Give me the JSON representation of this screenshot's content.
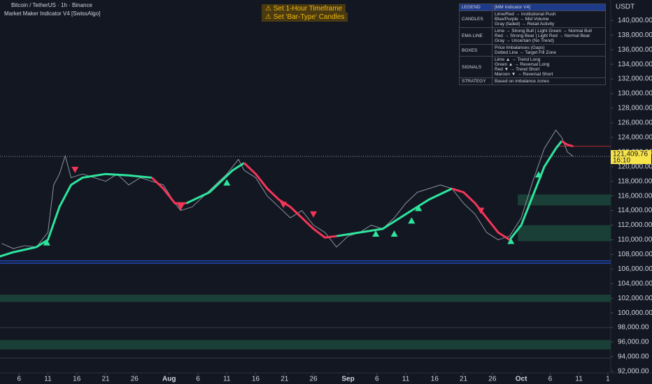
{
  "header": {
    "symbol": "Bitcoin / TetherUS · 1h · Binance",
    "indicator": "Market Maker Indicator V4 [SwissAlgo]",
    "currency": "USDT"
  },
  "warnings": [
    "⚠ Set 1-Hour Timeframe",
    "⚠ Set 'Bar-Type' Candles"
  ],
  "legend": {
    "title": "LEGEND",
    "subtitle": "[MM Indicator V4]",
    "rows": [
      {
        "label": "CANDLES",
        "lines": [
          "Lime/Red → Institutional Push",
          "Blue/Purple → Mid Volume",
          "Gray (faded) → Retail Activity"
        ]
      },
      {
        "label": "EMA LINE",
        "lines": [
          "Lime → Strong Bull | Light Green → Normal Bull",
          "Red → Strong Bear | Light Red → Normal Bear",
          "Gray → Uncertain (No Trend)"
        ]
      },
      {
        "label": "BOXES",
        "lines": [
          "Price Imbalances (Gaps)",
          "Dotted Line → Target Fill Zone"
        ]
      },
      {
        "label": "SIGNALS",
        "lines": [
          "Lime ▲ → Trend Long",
          "Green ▲ → Reversal Long",
          "Red ▼ → Trend Short",
          "Maroon ▼ → Reversal Short"
        ]
      },
      {
        "label": "STRATEGY",
        "lines": [
          "Based on imbalance zones"
        ]
      }
    ]
  },
  "chart_data": {
    "type": "line",
    "xlim": [
      1.7,
      107.5
    ],
    "ylim": [
      91800,
      142800
    ],
    "xticks": [
      {
        "value": 5,
        "label": "6"
      },
      {
        "value": 10,
        "label": "11"
      },
      {
        "value": 15,
        "label": "16"
      },
      {
        "value": 20,
        "label": "21"
      },
      {
        "value": 25,
        "label": "26"
      },
      {
        "value": 31,
        "label": "Aug"
      },
      {
        "value": 36,
        "label": "6"
      },
      {
        "value": 41,
        "label": "11"
      },
      {
        "value": 46,
        "label": "16"
      },
      {
        "value": 51,
        "label": "21"
      },
      {
        "value": 56,
        "label": "26"
      },
      {
        "value": 62,
        "label": "Sep"
      },
      {
        "value": 67,
        "label": "6"
      },
      {
        "value": 72,
        "label": "11"
      },
      {
        "value": 77,
        "label": "16"
      },
      {
        "value": 82,
        "label": "21"
      },
      {
        "value": 87,
        "label": "26"
      },
      {
        "value": 92,
        "label": "Oct"
      },
      {
        "value": 97,
        "label": "6"
      },
      {
        "value": 102,
        "label": "11"
      },
      {
        "value": 107,
        "label": "1"
      }
    ],
    "yticks": [
      {
        "value": 92000,
        "label": "92,000.00"
      },
      {
        "value": 94000,
        "label": "94,000.00"
      },
      {
        "value": 96000,
        "label": "96,000.00"
      },
      {
        "value": 98000,
        "label": "98,000.00"
      },
      {
        "value": 100000,
        "label": "100,000.00"
      },
      {
        "value": 102000,
        "label": "102,000.00"
      },
      {
        "value": 104000,
        "label": "104,000.00"
      },
      {
        "value": 106000,
        "label": "106,000.00"
      },
      {
        "value": 108000,
        "label": "108,000.00"
      },
      {
        "value": 110000,
        "label": "110,000.00"
      },
      {
        "value": 112000,
        "label": "112,000.00"
      },
      {
        "value": 114000,
        "label": "114,000.00"
      },
      {
        "value": 116000,
        "label": "116,000.00"
      },
      {
        "value": 118000,
        "label": "118,000.00"
      },
      {
        "value": 120000,
        "label": "120,000.00"
      },
      {
        "value": 122000,
        "label": "122,000.00"
      },
      {
        "value": 124000,
        "label": "124,000.00"
      },
      {
        "value": 126000,
        "label": "126,000.00"
      },
      {
        "value": 128000,
        "label": "128,000.00"
      },
      {
        "value": 130000,
        "label": "130,000.00"
      },
      {
        "value": 132000,
        "label": "132,000.00"
      },
      {
        "value": 134000,
        "label": "134,000.00"
      },
      {
        "value": 136000,
        "label": "136,000.00"
      },
      {
        "value": 138000,
        "label": "138,000.00"
      },
      {
        "value": 140000,
        "label": "140,000.00"
      }
    ],
    "zone_color": "#1d4a3c",
    "zones": [
      {
        "from": 1.7,
        "lo": 95000,
        "hi": 96300
      },
      {
        "from": 1.7,
        "lo": 101500,
        "hi": 102500
      },
      {
        "from": 91.4,
        "lo": 114700,
        "hi": 116200
      },
      {
        "from": 91.4,
        "lo": 109800,
        "hi": 112000
      }
    ],
    "levels": [
      {
        "value": 107100,
        "color": "#2962ff",
        "from": 1.7
      },
      {
        "value": 106800,
        "color": "#2962ff",
        "from": 1.7
      },
      {
        "value": 98000,
        "color": "#363a45",
        "from": 1.7
      },
      {
        "value": 93800,
        "color": "#363a45",
        "from": 1.7
      },
      {
        "value": 122800,
        "color": "#b22833",
        "from": 98
      }
    ],
    "last_price": {
      "value": 121409.76,
      "label": "121,409.76"
    },
    "countdown": "16:10",
    "series": [
      {
        "color": "#8a949e",
        "width": 1,
        "x": [
          2,
          4,
          6,
          8,
          10,
          11,
          12,
          13,
          14,
          16,
          18,
          20,
          22,
          24,
          26,
          28,
          30,
          32,
          33,
          35,
          37,
          39,
          41,
          43,
          44,
          46,
          48,
          50,
          52,
          54,
          56,
          58,
          60,
          62,
          64,
          66,
          68,
          70,
          72,
          74,
          76,
          78,
          80,
          82,
          84,
          86,
          88,
          90,
          92,
          94,
          96,
          98,
          99,
          100,
          101
        ],
        "values": [
          109500,
          108800,
          109200,
          109000,
          111000,
          117500,
          119000,
          121500,
          118500,
          119000,
          118500,
          118000,
          119000,
          117500,
          118500,
          118000,
          117500,
          115000,
          114000,
          114500,
          116000,
          117500,
          119000,
          121000,
          119500,
          118500,
          116000,
          114500,
          113000,
          114000,
          112000,
          111000,
          109000,
          110500,
          111000,
          112000,
          111500,
          113000,
          115000,
          116500,
          117000,
          117500,
          117000,
          115000,
          113500,
          111000,
          110000,
          110500,
          113000,
          118000,
          122500,
          125000,
          124000,
          122000,
          121400
        ]
      },
      {
        "color": "#2ee59d",
        "width": 3,
        "x": [
          0,
          4,
          8,
          10,
          12,
          14,
          16,
          20,
          24,
          28,
          30,
          32,
          34,
          38,
          42,
          44,
          46,
          48,
          50,
          52,
          54,
          56,
          58,
          60,
          64,
          68,
          72,
          76,
          80,
          82,
          84,
          86,
          88,
          90,
          92,
          94,
          96,
          98,
          99,
          100,
          101
        ],
        "values": [
          107300,
          108300,
          109000,
          110000,
          114500,
          117500,
          118500,
          119000,
          118800,
          118500,
          null,
          null,
          115000,
          116500,
          119500,
          120500,
          null,
          null,
          null,
          null,
          null,
          null,
          null,
          110500,
          111000,
          111500,
          113500,
          115500,
          117000,
          null,
          null,
          null,
          null,
          110000,
          112000,
          116000,
          120000,
          122500,
          123500,
          null,
          null
        ]
      },
      {
        "color": "#f23658",
        "width": 3,
        "x": [
          0,
          4,
          8,
          10,
          12,
          14,
          16,
          20,
          24,
          28,
          30,
          32,
          34,
          38,
          42,
          44,
          46,
          48,
          50,
          52,
          54,
          56,
          58,
          60,
          64,
          68,
          72,
          76,
          80,
          82,
          84,
          86,
          88,
          90,
          92,
          94,
          96,
          98,
          99,
          100,
          101
        ],
        "values": [
          null,
          null,
          null,
          null,
          null,
          null,
          null,
          null,
          null,
          118500,
          117000,
          115000,
          115000,
          null,
          null,
          120500,
          119000,
          117000,
          115500,
          114500,
          113000,
          111500,
          110300,
          110500,
          null,
          null,
          null,
          null,
          117000,
          116500,
          115000,
          113000,
          111000,
          110000,
          null,
          null,
          null,
          null,
          123500,
          123000,
          122800
        ]
      }
    ],
    "signals_up": {
      "color": "#2ee59d",
      "x": [
        9.8,
        41,
        66.8,
        70,
        73,
        74.2,
        90.2,
        95
      ],
      "values": [
        109600,
        117800,
        110800,
        110800,
        112600,
        114300,
        109800,
        118900
      ]
    },
    "signals_down": {
      "color": "#f23658",
      "x": [
        14.7,
        33,
        50.8,
        56,
        85
      ],
      "values": [
        119600,
        114500,
        114800,
        113500,
        114000
      ]
    }
  }
}
